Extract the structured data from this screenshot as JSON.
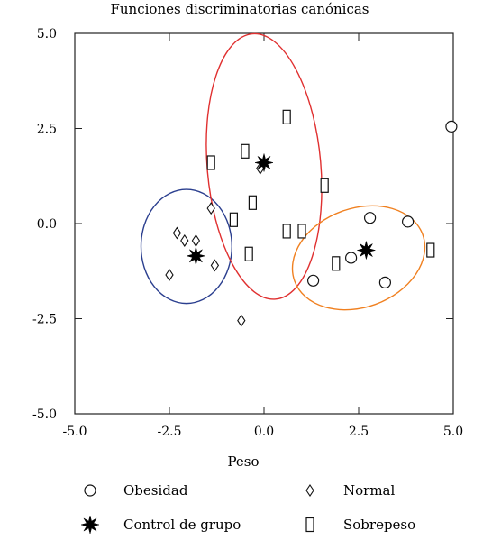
{
  "chart_data": {
    "type": "scatter",
    "title": "Funciones discriminatorias canónicas",
    "xlabel": "Peso",
    "ylabel": "",
    "xlim": [
      -5.0,
      5.0
    ],
    "ylim": [
      -5.0,
      5.0
    ],
    "xticks": [
      "-5.0",
      "-2.5",
      "0.0",
      "2.5",
      "5.0"
    ],
    "yticks": [
      "5.0",
      "2.5",
      "0.0",
      "-2.5",
      "-5.0"
    ],
    "grid": false,
    "legend_position": "bottom",
    "series": [
      {
        "name": "Obesidad",
        "marker": "circle",
        "points": [
          [
            1.3,
            -1.5
          ],
          [
            2.3,
            -0.9
          ],
          [
            2.8,
            0.15
          ],
          [
            3.2,
            -1.55
          ],
          [
            3.8,
            0.05
          ],
          [
            4.95,
            2.55
          ]
        ]
      },
      {
        "name": "Normal",
        "marker": "diamond",
        "points": [
          [
            -2.5,
            -1.35
          ],
          [
            -2.3,
            -0.25
          ],
          [
            -2.1,
            -0.45
          ],
          [
            -1.8,
            -0.45
          ],
          [
            -1.4,
            0.4
          ],
          [
            -1.3,
            -1.1
          ],
          [
            -0.6,
            -2.55
          ],
          [
            -0.1,
            1.45
          ]
        ]
      },
      {
        "name": "Control de grupo",
        "marker": "star",
        "points": [
          [
            -1.8,
            -0.85
          ],
          [
            0.0,
            1.6
          ],
          [
            2.7,
            -0.7
          ]
        ]
      },
      {
        "name": "Sobrepeso",
        "marker": "rect",
        "points": [
          [
            -1.4,
            1.6
          ],
          [
            -0.5,
            1.9
          ],
          [
            -0.8,
            0.1
          ],
          [
            -0.4,
            -0.8
          ],
          [
            -0.3,
            0.55
          ],
          [
            0.6,
            2.8
          ],
          [
            0.6,
            -0.2
          ],
          [
            1.0,
            -0.2
          ],
          [
            1.6,
            1.0
          ],
          [
            1.9,
            -1.05
          ],
          [
            4.4,
            -0.7
          ]
        ]
      }
    ],
    "ellipses": [
      {
        "group": "Normal",
        "color": "#2b3f8f",
        "cx": -2.05,
        "cy": -0.6,
        "rx": 1.2,
        "ry": 1.5
      },
      {
        "group": "Sobrepeso",
        "color": "#e03030",
        "cx": 0.0,
        "cy": 1.5,
        "rx": 1.5,
        "ry": 3.5,
        "angle_deg": -5
      },
      {
        "group": "Obesidad",
        "color": "#f08020",
        "cx": 2.5,
        "cy": -0.9,
        "rx": 1.8,
        "ry": 1.3,
        "angle_deg": -20
      }
    ]
  },
  "legend": [
    {
      "label": "Obesidad",
      "marker": "circle"
    },
    {
      "label": "Normal",
      "marker": "diamond"
    },
    {
      "label": "Control de grupo",
      "marker": "star"
    },
    {
      "label": "Sobrepeso",
      "marker": "rect"
    }
  ]
}
